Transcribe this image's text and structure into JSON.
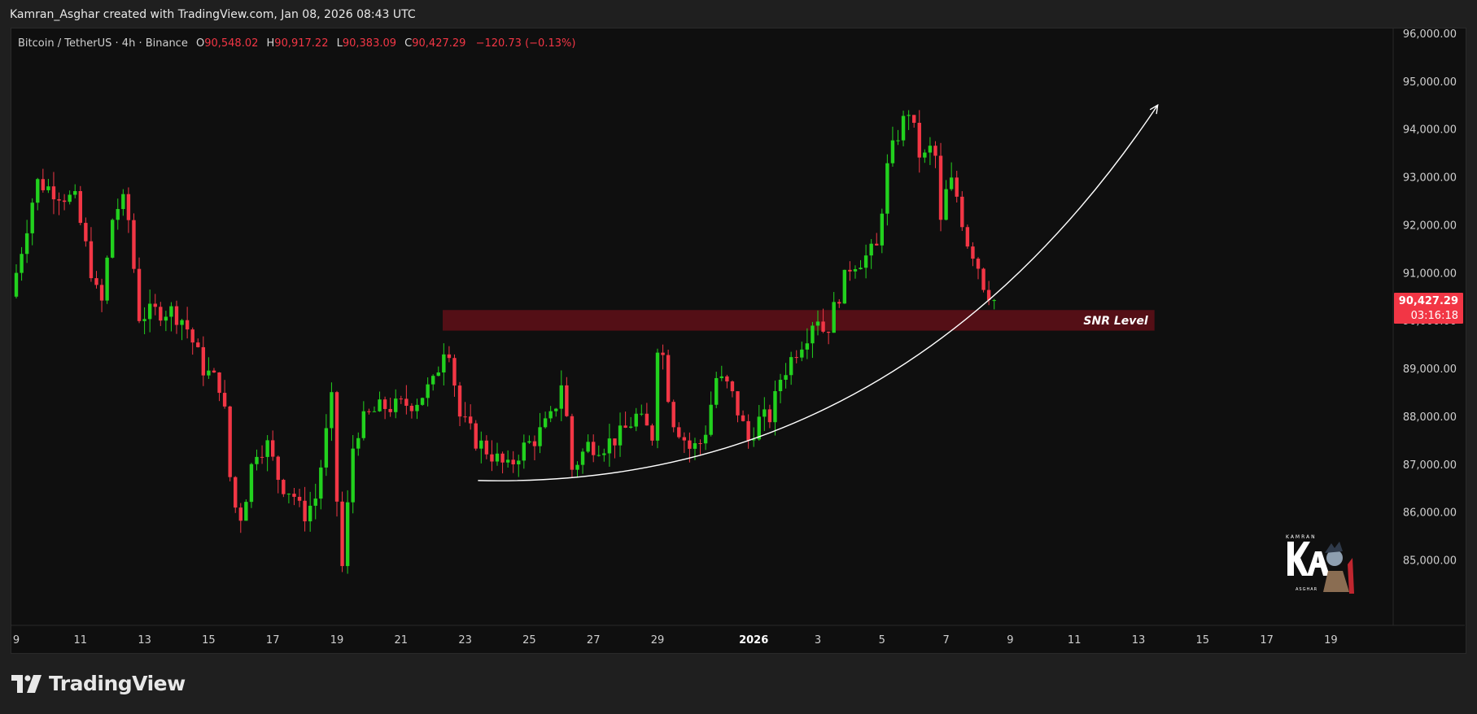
{
  "header": {
    "attribution": "Kamran_Asghar created with TradingView.com, Jan 08, 2026 08:43 UTC"
  },
  "legend": {
    "symbol": "Bitcoin / TetherUS · 4h · Binance",
    "open_label": "O",
    "open": "90,548.02",
    "high_label": "H",
    "high": "90,917.22",
    "low_label": "L",
    "low": "90,383.09",
    "close_label": "C",
    "close": "90,427.29",
    "change": "−120.73 (−0.13%)"
  },
  "price_tag": {
    "price": "90,427.29",
    "countdown": "03:16:18"
  },
  "annotation": {
    "snr_label": "SNR Level"
  },
  "brand": {
    "name": "TradingView"
  },
  "colors": {
    "up": "#22d11e",
    "down": "#f23645",
    "background": "#0f0f0f",
    "snr_zone": "#5c0f17",
    "curve": "#ffffff",
    "price_tag": "#f23645"
  },
  "chart_data": {
    "type": "candlestick",
    "symbol": "Bitcoin / TetherUS",
    "timeframe": "4h",
    "y_axis": {
      "ticks": [
        96000,
        95000,
        94000,
        93000,
        92000,
        91000,
        90000,
        89000,
        88000,
        87000,
        86000,
        85000
      ],
      "tick_labels": [
        "96,000.00",
        "95,000.00",
        "94,000.00",
        "93,000.00",
        "92,000.00",
        "91,000.00",
        "90,000.00",
        "89,000.00",
        "88,000.00",
        "87,000.00",
        "86,000.00",
        "85,000.00"
      ],
      "range": [
        84450,
        96050
      ]
    },
    "x_axis": {
      "tick_labels": [
        "9",
        "11",
        "13",
        "15",
        "17",
        "19",
        "21",
        "23",
        "25",
        "27",
        "29",
        "2026",
        "3",
        "5",
        "7",
        "9",
        "11",
        "13",
        "15",
        "17",
        "19"
      ],
      "tick_days": [
        0,
        2,
        4,
        6,
        8,
        10,
        12,
        14,
        16,
        18,
        20,
        23,
        25,
        27,
        29,
        31,
        33,
        35,
        37,
        39,
        41
      ],
      "unit": "day index (0 = Dec 9, 2025)"
    },
    "snr_zone": {
      "top": 90220,
      "bottom": 89790,
      "start_day": 13.3,
      "end_day": 35.5,
      "label": "SNR Level"
    },
    "curve": {
      "start_day": 14.4,
      "start_price": 86660,
      "end_day": 35.6,
      "end_price": 94500
    },
    "last_price": 90427.29,
    "candle_keyframes": [
      [
        0,
        90500
      ],
      [
        0.8,
        92900
      ],
      [
        1.4,
        92700
      ],
      [
        2.0,
        92500
      ],
      [
        2.8,
        90200
      ],
      [
        3.2,
        92300
      ],
      [
        3.6,
        92500
      ],
      [
        4.0,
        90100
      ],
      [
        4.6,
        90200
      ],
      [
        5.0,
        90200
      ],
      [
        5.4,
        90000
      ],
      [
        6.0,
        89000
      ],
      [
        6.6,
        88600
      ],
      [
        6.9,
        86200
      ],
      [
        7.2,
        85900
      ],
      [
        7.6,
        87300
      ],
      [
        8.0,
        87400
      ],
      [
        8.4,
        86600
      ],
      [
        8.8,
        86400
      ],
      [
        9.1,
        85900
      ],
      [
        9.5,
        86300
      ],
      [
        10.0,
        88300
      ],
      [
        10.3,
        84600
      ],
      [
        10.7,
        87600
      ],
      [
        11.1,
        88000
      ],
      [
        11.6,
        88200
      ],
      [
        12.0,
        88200
      ],
      [
        12.6,
        88300
      ],
      [
        13.2,
        88700
      ],
      [
        13.6,
        89700
      ],
      [
        14.0,
        88000
      ],
      [
        14.5,
        87500
      ],
      [
        15.0,
        87200
      ],
      [
        15.5,
        86900
      ],
      [
        15.9,
        87300
      ],
      [
        16.3,
        87500
      ],
      [
        16.9,
        88000
      ],
      [
        17.2,
        88800
      ],
      [
        17.5,
        86900
      ],
      [
        18.0,
        87400
      ],
      [
        18.5,
        87400
      ],
      [
        19.0,
        87600
      ],
      [
        19.5,
        88000
      ],
      [
        20.0,
        87600
      ],
      [
        20.2,
        89900
      ],
      [
        20.6,
        88000
      ],
      [
        21.2,
        87300
      ],
      [
        21.6,
        87500
      ],
      [
        22.0,
        88800
      ],
      [
        22.4,
        88600
      ],
      [
        23.0,
        87500
      ],
      [
        23.3,
        87900
      ],
      [
        23.7,
        88000
      ],
      [
        24.0,
        88800
      ],
      [
        24.5,
        89400
      ],
      [
        24.9,
        89800
      ],
      [
        25.1,
        90200
      ],
      [
        25.4,
        89700
      ],
      [
        25.8,
        90500
      ],
      [
        26.2,
        91200
      ],
      [
        26.6,
        91300
      ],
      [
        27.0,
        91500
      ],
      [
        27.3,
        93100
      ],
      [
        27.6,
        93800
      ],
      [
        28.0,
        94400
      ],
      [
        28.4,
        93300
      ],
      [
        28.8,
        93700
      ],
      [
        29.0,
        92000
      ],
      [
        29.2,
        92800
      ],
      [
        29.4,
        92900
      ],
      [
        29.8,
        91700
      ],
      [
        30.1,
        91300
      ],
      [
        30.5,
        90400
      ]
    ]
  }
}
